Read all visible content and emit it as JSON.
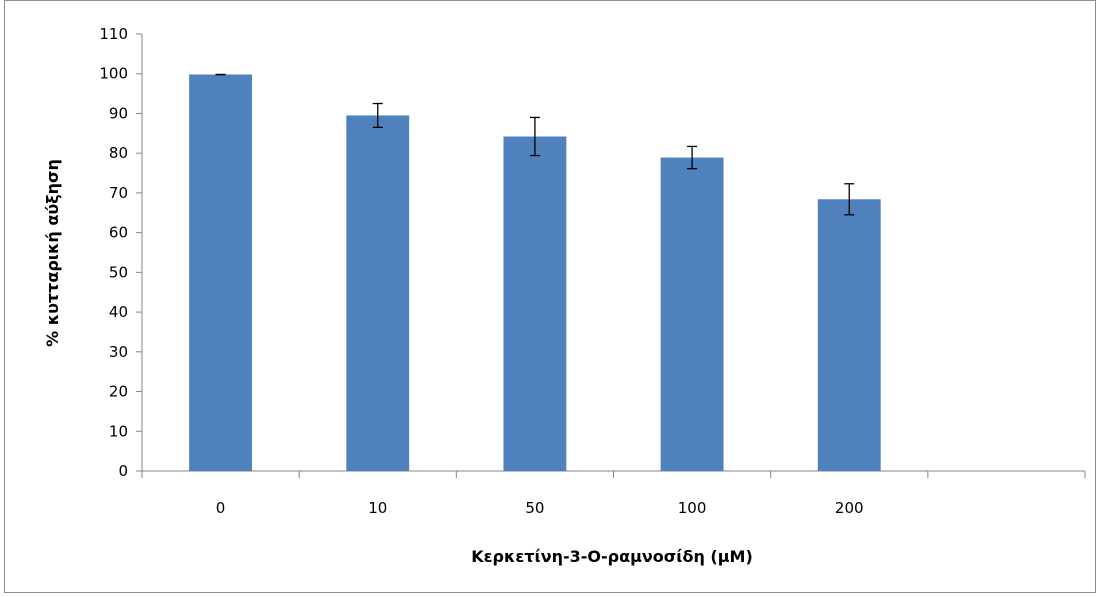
{
  "chart_data": {
    "type": "bar",
    "title": "",
    "xlabel": "Κερκετίνη-3-Ο-ραμνοσίδη (μΜ)",
    "ylabel": "% κυτταρική αύξηση",
    "categories": [
      "0",
      "10",
      "50",
      "100",
      "200",
      ""
    ],
    "series": [
      {
        "values": [
          99.8,
          89.5,
          84.2,
          78.9,
          68.4,
          null
        ],
        "errors": [
          0,
          3.0,
          4.8,
          2.8,
          3.9,
          null
        ]
      }
    ],
    "ylim": [
      0,
      110
    ],
    "yticks": [
      "0",
      "10",
      "20",
      "30",
      "40",
      "50",
      "60",
      "70",
      "80",
      "90",
      "100",
      "110"
    ],
    "grid": false,
    "legend": "none",
    "colors": {
      "bar": "#4f81bd",
      "axis": "#868686",
      "error_bar": "#000000"
    }
  }
}
